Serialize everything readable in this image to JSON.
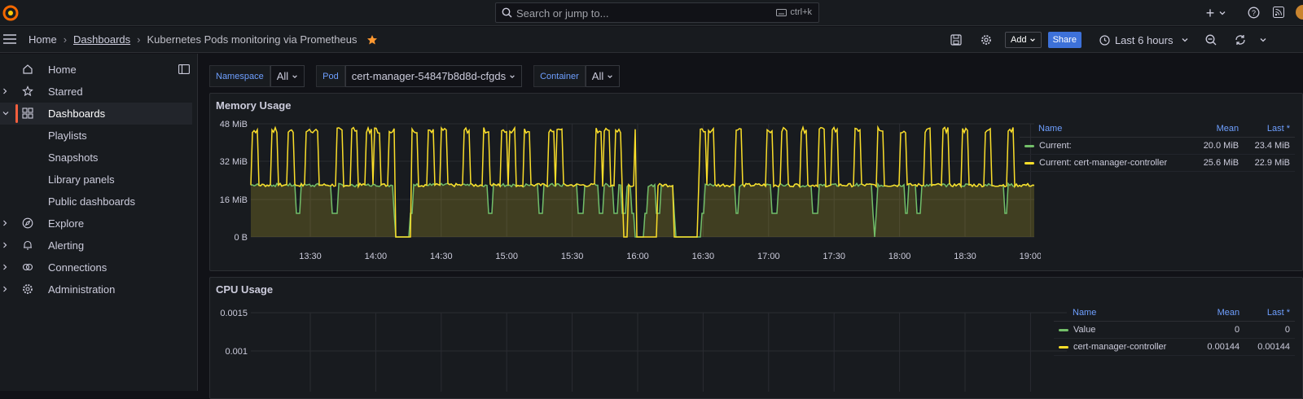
{
  "topbar": {
    "search_placeholder": "Search or jump to...",
    "search_shortcut": "ctrl+k",
    "icons": [
      "grafana-logo-icon",
      "search-icon",
      "keyboard-icon",
      "plus-icon",
      "chevron-down-icon",
      "help-icon",
      "rss-icon",
      "avatar"
    ]
  },
  "breadcrumb": {
    "home": "Home",
    "dashboards": "Dashboards",
    "current": "Kubernetes Pods monitoring via Prometheus"
  },
  "toolbar": {
    "add_label": "Add",
    "share_label": "Share",
    "time_range": "Last 6 hours",
    "icons": [
      "save-icon",
      "gear-icon",
      "clock-icon",
      "zoom-out-icon",
      "refresh-icon",
      "chevron-down-icon"
    ]
  },
  "sidebar": {
    "items": [
      {
        "label": "Home",
        "icon": "home-icon"
      },
      {
        "label": "Starred",
        "icon": "star-icon"
      },
      {
        "label": "Dashboards",
        "icon": "dashboards-icon"
      },
      {
        "label": "Playlists"
      },
      {
        "label": "Snapshots"
      },
      {
        "label": "Library panels"
      },
      {
        "label": "Public dashboards"
      },
      {
        "label": "Explore",
        "icon": "compass-icon"
      },
      {
        "label": "Alerting",
        "icon": "bell-icon"
      },
      {
        "label": "Connections",
        "icon": "connections-icon"
      },
      {
        "label": "Administration",
        "icon": "gear-icon"
      }
    ]
  },
  "variables": {
    "namespace_label": "Namespace",
    "namespace_value": "All",
    "pod_label": "Pod",
    "pod_value": "cert-manager-54847b8d8d-cfgds",
    "container_label": "Container",
    "container_value": "All"
  },
  "colors": {
    "green": "#73bf69",
    "yellow": "#fade2a",
    "accent": "#f55f3e",
    "share": "#3d71d9"
  },
  "chart_data": [
    {
      "type": "line",
      "title": "Memory Usage",
      "y_ticks": [
        "48 MiB",
        "32 MiB",
        "16 MiB",
        "0 B"
      ],
      "ylim": [
        0,
        48
      ],
      "x_ticks": [
        "13:30",
        "14:00",
        "14:30",
        "15:00",
        "15:30",
        "16:00",
        "16:30",
        "17:00",
        "17:30",
        "18:00",
        "18:30",
        "19:00"
      ],
      "legend": {
        "headers": {
          "name": "Name",
          "mean": "Mean",
          "last": "Last *"
        },
        "rows": [
          {
            "name": "Current:",
            "mean": "20.0 MiB",
            "last": "23.4 MiB",
            "color": "#73bf69"
          },
          {
            "name": "Current: cert-manager-controller",
            "mean": "25.6 MiB",
            "last": "22.9 MiB",
            "color": "#fade2a"
          }
        ]
      },
      "series": [
        {
          "name": "Current:",
          "baseline": 22.5,
          "dips_to": 0
        },
        {
          "name": "Current: cert-manager-controller",
          "baseline": 22.5,
          "spikes_to": 45
        }
      ]
    },
    {
      "type": "line",
      "title": "CPU Usage",
      "y_ticks": [
        "0.0015",
        "0.001"
      ],
      "legend": {
        "headers": {
          "name": "Name",
          "mean": "Mean",
          "last": "Last *"
        },
        "rows": [
          {
            "name": "Value",
            "mean": "0",
            "last": "0",
            "color": "#73bf69"
          },
          {
            "name": "cert-manager-controller",
            "mean": "0.00144",
            "last": "0.00144",
            "color": "#fade2a"
          }
        ]
      }
    }
  ]
}
